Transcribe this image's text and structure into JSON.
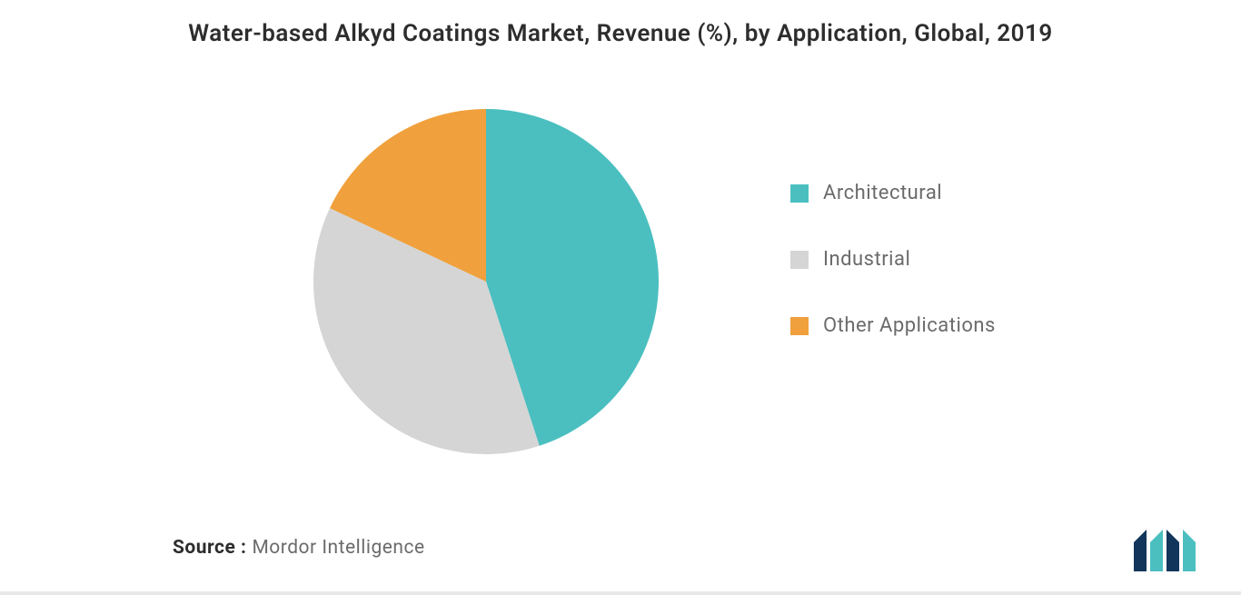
{
  "chart": {
    "type": "pie",
    "title": "Water-based Alkyd Coatings Market, Revenue (%), by Application, Global, 2019",
    "title_fontsize": 26,
    "title_color": "#2d2d2d",
    "background_color": "#ffffff",
    "slices": [
      {
        "label": "Architectural",
        "value": 45,
        "color": "#4bbfc0"
      },
      {
        "label": "Industrial",
        "value": 37,
        "color": "#d5d5d5"
      },
      {
        "label": "Other Applications",
        "value": 18,
        "color": "#f0a03c"
      }
    ],
    "legend": {
      "position": "right",
      "fontsize": 22,
      "text_color": "#6b6b6b",
      "swatch_size": 20
    }
  },
  "source": {
    "prefix": "Source :",
    "text": "Mordor Intelligence",
    "prefix_color": "#2d2d2d",
    "text_color": "#6b6b6b",
    "fontsize": 21
  },
  "logo": {
    "bar1_color": "#12355b",
    "bar2_color": "#4bbfc0",
    "bar3_color": "#12355b",
    "bar4_color": "#4bbfc0"
  }
}
